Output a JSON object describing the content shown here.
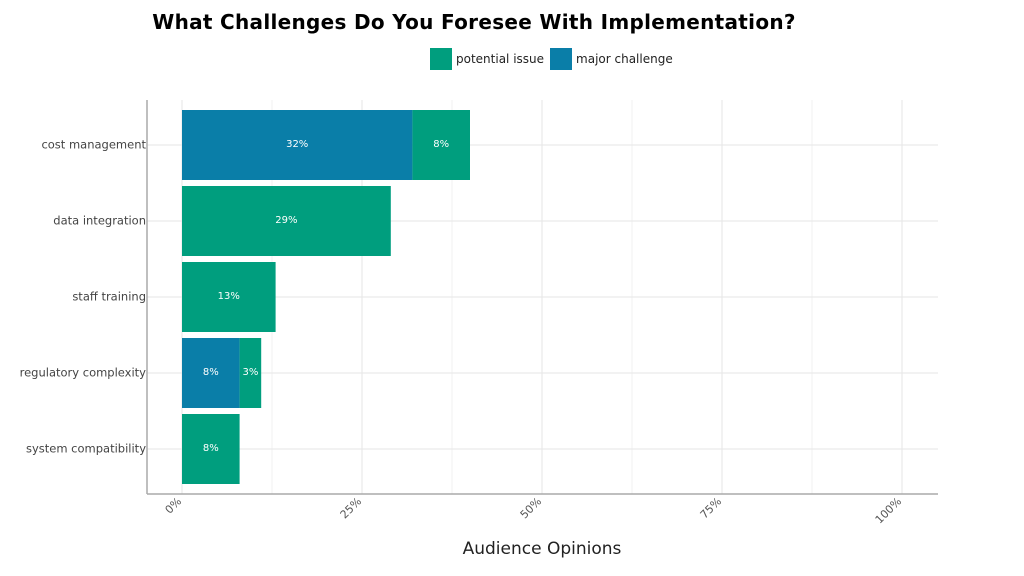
{
  "chart_data": {
    "type": "bar",
    "orientation": "horizontal",
    "stacked": true,
    "title": "What Challenges Do You Foresee With Implementation?",
    "xlabel": "Audience Opinions",
    "ylabel": "",
    "xlim": [
      0,
      100
    ],
    "x_ticks": [
      "0%",
      "25%",
      "50%",
      "75%",
      "100%"
    ],
    "categories": [
      "cost management",
      "data integration",
      "staff training",
      "regulatory complexity",
      "system compatibility"
    ],
    "series": [
      {
        "name": "major challenge",
        "color": "#0a7ea8",
        "values": [
          32,
          0,
          0,
          8,
          0
        ],
        "labels": [
          "32%",
          "",
          "",
          "8%",
          ""
        ]
      },
      {
        "name": "potential issue",
        "color": "#009e7e",
        "values": [
          8,
          29,
          13,
          3,
          8
        ],
        "labels": [
          "8%",
          "29%",
          "13%",
          "3%",
          "8%"
        ]
      }
    ],
    "legend": [
      {
        "name": "potential issue",
        "color": "#009e7e"
      },
      {
        "name": "major challenge",
        "color": "#0a7ea8"
      }
    ],
    "legend_position": "top",
    "grid": true
  }
}
